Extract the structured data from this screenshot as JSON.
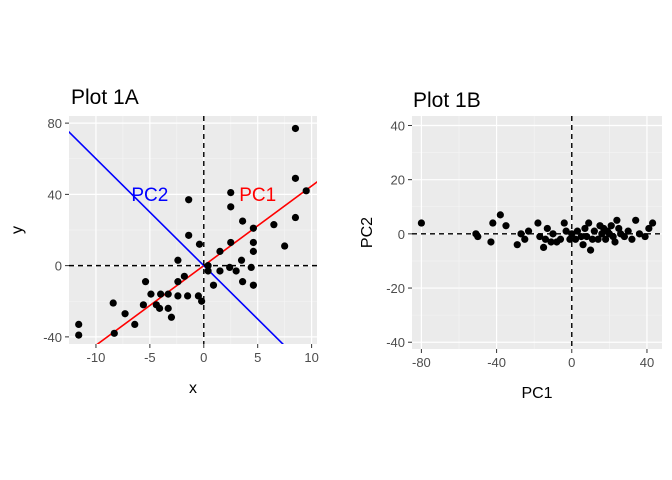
{
  "chart_data": [
    {
      "type": "scatter",
      "title": "Plot 1A",
      "xlabel": "x",
      "ylabel": "y",
      "xlim": [
        -12.5,
        10.5
      ],
      "ylim": [
        -44,
        84
      ],
      "xticks": [
        -10,
        -5,
        0,
        5,
        10
      ],
      "xtick_labels": [
        "-10",
        "-5",
        "0",
        "5",
        "10"
      ],
      "yticks": [
        -40,
        0,
        40,
        80
      ],
      "ytick_labels": [
        "-40",
        "0",
        "40",
        "80"
      ],
      "grid": true,
      "panel_background": "#ebebeb",
      "point_color": "#000000",
      "reference_lines": {
        "x": 0,
        "y": 0,
        "style": "dashed",
        "color": "#000000"
      },
      "lines": [
        {
          "label": "PC1",
          "color": "#ff0000",
          "slope": 4.47,
          "intercept": 0
        },
        {
          "label": "PC2",
          "color": "#0000ff",
          "slope": -6.0,
          "intercept": 0
        }
      ],
      "annotations": [
        {
          "text": "PC1",
          "x": 5.0,
          "y": 39,
          "color": "#ff0000"
        },
        {
          "text": "PC2",
          "x": -5.0,
          "y": 39,
          "color": "#0000ff"
        }
      ],
      "points": [
        [
          -11.6,
          -33
        ],
        [
          -11.6,
          -39
        ],
        [
          -8.4,
          -21
        ],
        [
          -8.3,
          -38
        ],
        [
          -7.3,
          -27
        ],
        [
          -6.4,
          -33
        ],
        [
          -5.6,
          -22
        ],
        [
          -5.4,
          -9
        ],
        [
          -4.9,
          -16
        ],
        [
          -4.4,
          -22
        ],
        [
          -4.1,
          -24
        ],
        [
          -4.0,
          -16
        ],
        [
          -3.3,
          -16
        ],
        [
          -3.3,
          -24
        ],
        [
          -3.0,
          -29
        ],
        [
          -2.4,
          -9
        ],
        [
          -2.4,
          -17
        ],
        [
          -2.4,
          3
        ],
        [
          -1.8,
          -6
        ],
        [
          -1.5,
          -17
        ],
        [
          -1.4,
          17
        ],
        [
          -1.4,
          37
        ],
        [
          -0.5,
          -17
        ],
        [
          -0.4,
          12
        ],
        [
          -0.2,
          -20
        ],
        [
          0.4,
          -3
        ],
        [
          0.4,
          0
        ],
        [
          0.9,
          -11
        ],
        [
          1.5,
          -3
        ],
        [
          1.5,
          8
        ],
        [
          2.4,
          -1
        ],
        [
          2.5,
          13
        ],
        [
          2.5,
          33
        ],
        [
          2.5,
          41
        ],
        [
          3.0,
          -3
        ],
        [
          3.5,
          3
        ],
        [
          3.6,
          25
        ],
        [
          3.6,
          -9
        ],
        [
          4.4,
          -1
        ],
        [
          4.6,
          13
        ],
        [
          4.6,
          21
        ],
        [
          4.6,
          8
        ],
        [
          4.6,
          -11
        ],
        [
          6.5,
          23
        ],
        [
          7.5,
          11
        ],
        [
          8.5,
          77
        ],
        [
          8.5,
          49
        ],
        [
          8.5,
          27
        ],
        [
          9.5,
          42
        ]
      ]
    },
    {
      "type": "scatter",
      "title": "Plot 1B",
      "xlabel": "PC1",
      "ylabel": "PC2",
      "xlim": [
        -85,
        48
      ],
      "ylim": [
        -42.5,
        43.5
      ],
      "xticks": [
        -80,
        -40,
        0,
        40
      ],
      "xtick_labels": [
        "-80",
        "-40",
        "0",
        "40"
      ],
      "yticks": [
        -40,
        -20,
        0,
        20,
        40
      ],
      "ytick_labels": [
        "-40",
        "-20",
        "0",
        "20",
        "40"
      ],
      "grid": true,
      "panel_background": "#ebebeb",
      "point_color": "#000000",
      "reference_lines": {
        "x": 0,
        "y": 0,
        "style": "dashed",
        "color": "#000000"
      },
      "points": [
        [
          -80,
          4
        ],
        [
          -51,
          0
        ],
        [
          -50,
          -1
        ],
        [
          -43,
          -3
        ],
        [
          -42,
          4
        ],
        [
          -38,
          7
        ],
        [
          -35,
          3
        ],
        [
          -29,
          -4
        ],
        [
          -27,
          0
        ],
        [
          -25,
          -2
        ],
        [
          -23,
          1
        ],
        [
          -18,
          4
        ],
        [
          -17,
          -1
        ],
        [
          -15,
          -5
        ],
        [
          -14,
          -2
        ],
        [
          -13,
          2
        ],
        [
          -11,
          -3
        ],
        [
          -10,
          0
        ],
        [
          -8,
          -3
        ],
        [
          -6,
          -2
        ],
        [
          -4,
          4
        ],
        [
          -3,
          1
        ],
        [
          -1,
          -2
        ],
        [
          0,
          0
        ],
        [
          2,
          -2
        ],
        [
          3,
          1
        ],
        [
          5,
          -1
        ],
        [
          6,
          -4
        ],
        [
          7,
          2
        ],
        [
          8,
          -1
        ],
        [
          9,
          4
        ],
        [
          10,
          -6
        ],
        [
          11,
          -2
        ],
        [
          12,
          1
        ],
        [
          14,
          -2
        ],
        [
          15,
          3
        ],
        [
          16,
          0
        ],
        [
          17,
          2
        ],
        [
          18,
          -2
        ],
        [
          19,
          1
        ],
        [
          20,
          0
        ],
        [
          21,
          3
        ],
        [
          22,
          -1
        ],
        [
          23,
          -3
        ],
        [
          24,
          5
        ],
        [
          25,
          2
        ],
        [
          26,
          0
        ],
        [
          28,
          -1
        ],
        [
          30,
          1
        ],
        [
          32,
          -2
        ],
        [
          34,
          5
        ],
        [
          36,
          0
        ],
        [
          39,
          -1
        ],
        [
          41,
          2
        ],
        [
          43,
          4
        ]
      ]
    }
  ]
}
